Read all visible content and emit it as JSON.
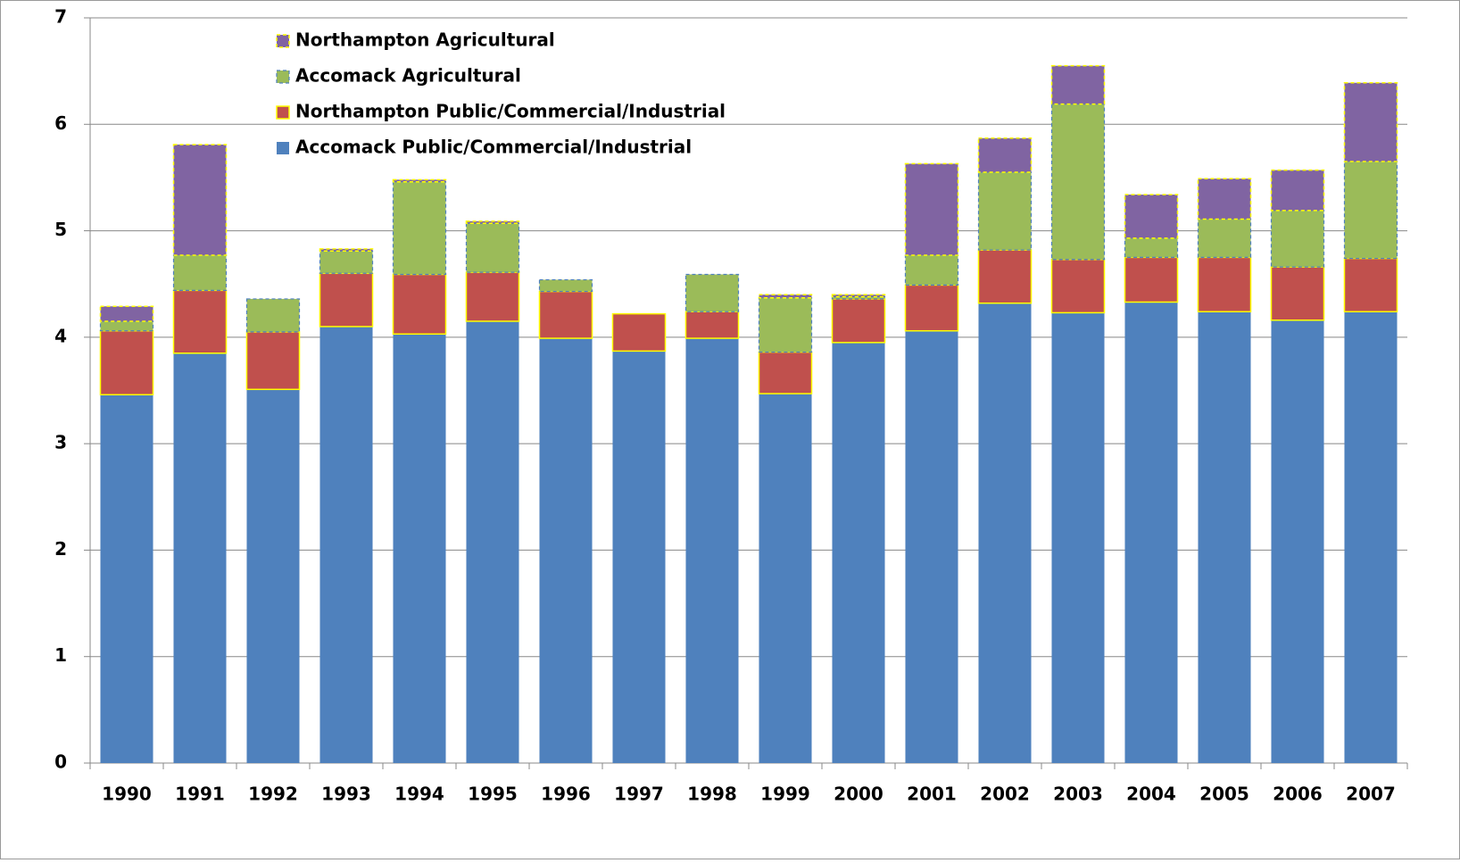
{
  "chart_data": {
    "type": "stacked-bar",
    "categories": [
      "1990",
      "1991",
      "1992",
      "1993",
      "1994",
      "1995",
      "1996",
      "1997",
      "1998",
      "1999",
      "2000",
      "2001",
      "2002",
      "2003",
      "2004",
      "2005",
      "2006",
      "2007"
    ],
    "series": [
      {
        "name": "Accomack Public/Commercial/Industrial",
        "color": "#4f81bd",
        "values": [
          3.46,
          3.85,
          3.51,
          4.1,
          4.03,
          4.15,
          3.99,
          3.87,
          3.99,
          3.47,
          3.95,
          4.06,
          4.32,
          4.23,
          4.33,
          4.24,
          4.16,
          4.24
        ]
      },
      {
        "name": "Northampton Public/Commercial/Industrial",
        "color": "#c0504d",
        "values": [
          0.6,
          0.59,
          0.54,
          0.5,
          0.56,
          0.46,
          0.44,
          0.35,
          0.25,
          0.39,
          0.41,
          0.43,
          0.5,
          0.5,
          0.42,
          0.51,
          0.5,
          0.5
        ]
      },
      {
        "name": "Accomack Agricultural",
        "color": "#9bbb59",
        "values": [
          0.09,
          0.33,
          0.31,
          0.21,
          0.87,
          0.46,
          0.11,
          0,
          0.35,
          0.51,
          0.02,
          0.28,
          0.73,
          1.46,
          0.18,
          0.36,
          0.53,
          0.91
        ]
      },
      {
        "name": "Northampton Agricultural",
        "color": "#8064a2",
        "values": [
          0.14,
          1.04,
          0,
          0.02,
          0.02,
          0.02,
          0,
          0,
          0,
          0.03,
          0.02,
          0.86,
          0.32,
          0.36,
          0.41,
          0.38,
          0.38,
          0.74
        ]
      }
    ],
    "ylim": [
      0,
      7
    ],
    "yticks": [
      0,
      1,
      2,
      3,
      4,
      5,
      6,
      7
    ],
    "grid": true
  }
}
